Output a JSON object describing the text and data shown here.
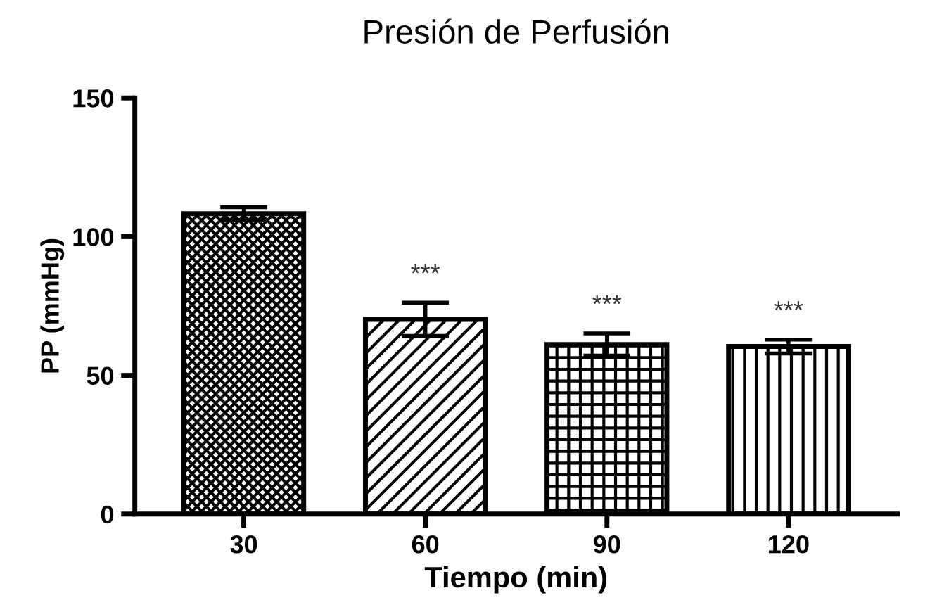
{
  "chart_data": {
    "type": "bar",
    "title": "Presión de Perfusión",
    "xlabel": "Tiempo (min)",
    "ylabel": "PP (mmHg)",
    "categories": [
      "30",
      "60",
      "90",
      "120"
    ],
    "values": [
      108.3,
      70.2,
      61.1,
      60.4
    ],
    "errors": [
      2.3,
      6,
      4,
      2.5
    ],
    "colors": [
      "#000000",
      "#000000",
      "#000000",
      "#000000"
    ],
    "ylim": [
      0,
      150
    ],
    "yticks": [
      0,
      50,
      100,
      150
    ],
    "grid": false,
    "legend": false,
    "annotations": [
      "***",
      "***",
      "***"
    ]
  }
}
